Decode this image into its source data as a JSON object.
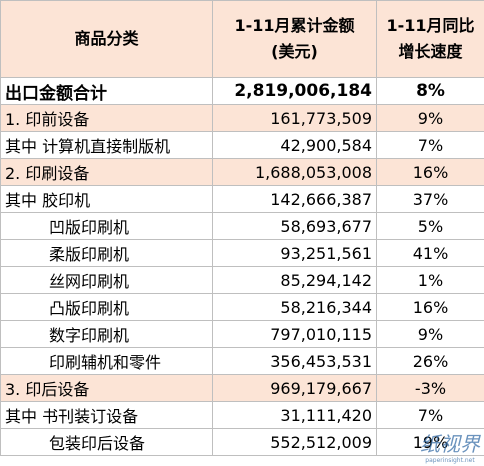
{
  "table": {
    "header": [
      "商品分类",
      "1-11月累计金额\n(美元)",
      "1-11月同比\n增长速度"
    ],
    "rows": [
      [
        "出口金额合计",
        "2,819,006,184",
        "8%"
      ],
      [
        "1. 印前设备",
        "161,773,509",
        "9%"
      ],
      [
        "其中 计算机直接制版机",
        "42,900,584",
        "7%"
      ],
      [
        "2. 印刷设备",
        "1,688,053,008",
        "16%"
      ],
      [
        "其中 胶印机",
        "142,666,387",
        "37%"
      ],
      [
        "凹版印刷机",
        "58,693,677",
        "5%"
      ],
      [
        "柔版印刷机",
        "93,251,561",
        "41%"
      ],
      [
        "丝网印刷机",
        "85,294,142",
        "1%"
      ],
      [
        "凸版印刷机",
        "58,216,344",
        "16%"
      ],
      [
        "数字印刷机",
        "797,010,115",
        "9%"
      ],
      [
        "印刷辅机和零件",
        "356,453,531",
        "26%"
      ],
      [
        "3. 印后设备",
        "969,179,667",
        "-3%"
      ],
      [
        "其中 书刊装订设备",
        "31,111,420",
        "7%"
      ],
      [
        "包装印后设备",
        "552,512,009",
        "19%"
      ]
    ]
  },
  "watermark": {
    "name": "纸视界",
    "url": "paperinsight.net"
  }
}
